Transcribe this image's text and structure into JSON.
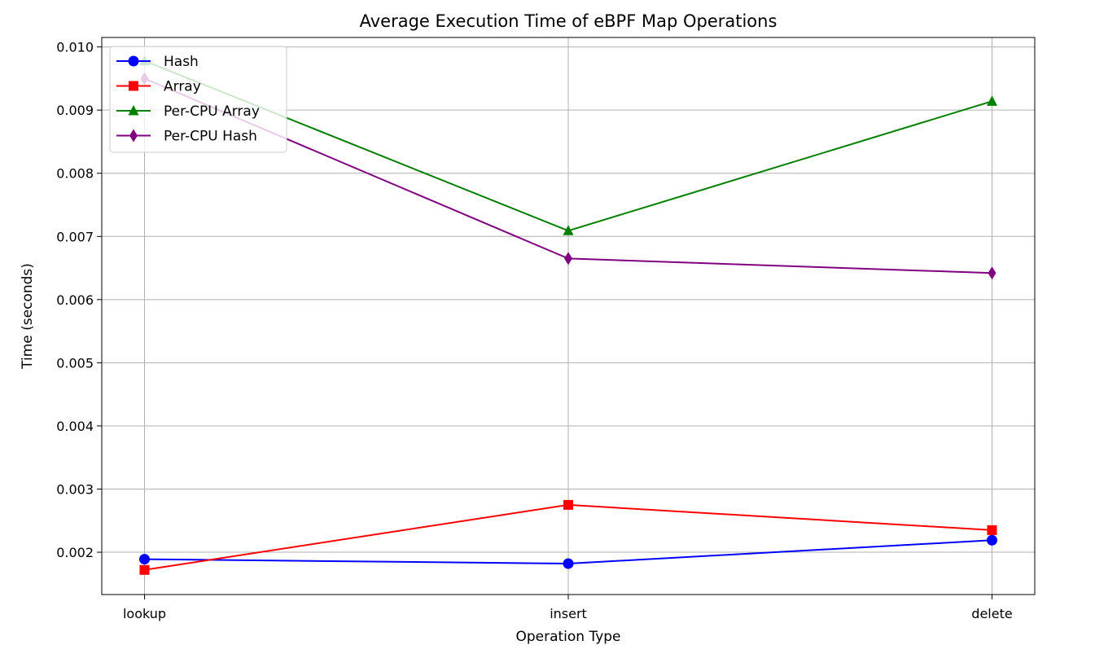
{
  "chart_data": {
    "type": "line",
    "title": "Average Execution Time of eBPF Map Operations",
    "xlabel": "Operation Type",
    "ylabel": "Time (seconds)",
    "categories": [
      "lookup",
      "insert",
      "delete"
    ],
    "ylim": [
      0.00133,
      0.01015
    ],
    "yticks": [
      "0.002",
      "0.003",
      "0.004",
      "0.005",
      "0.006",
      "0.007",
      "0.008",
      "0.009",
      "0.010"
    ],
    "grid": true,
    "legend_position": "upper-left",
    "series": [
      {
        "name": "Hash",
        "color": "#0000ff",
        "marker": "circle",
        "values": [
          0.00189,
          0.00182,
          0.00219
        ]
      },
      {
        "name": "Array",
        "color": "#ff0000",
        "marker": "square",
        "values": [
          0.00172,
          0.00275,
          0.00235
        ]
      },
      {
        "name": "Per-CPU Array",
        "color": "#008000",
        "marker": "triangle",
        "values": [
          0.00978,
          0.00709,
          0.00914
        ]
      },
      {
        "name": "Per-CPU Hash",
        "color": "#800080",
        "marker": "diamond",
        "values": [
          0.0095,
          0.00665,
          0.00642
        ]
      }
    ]
  }
}
